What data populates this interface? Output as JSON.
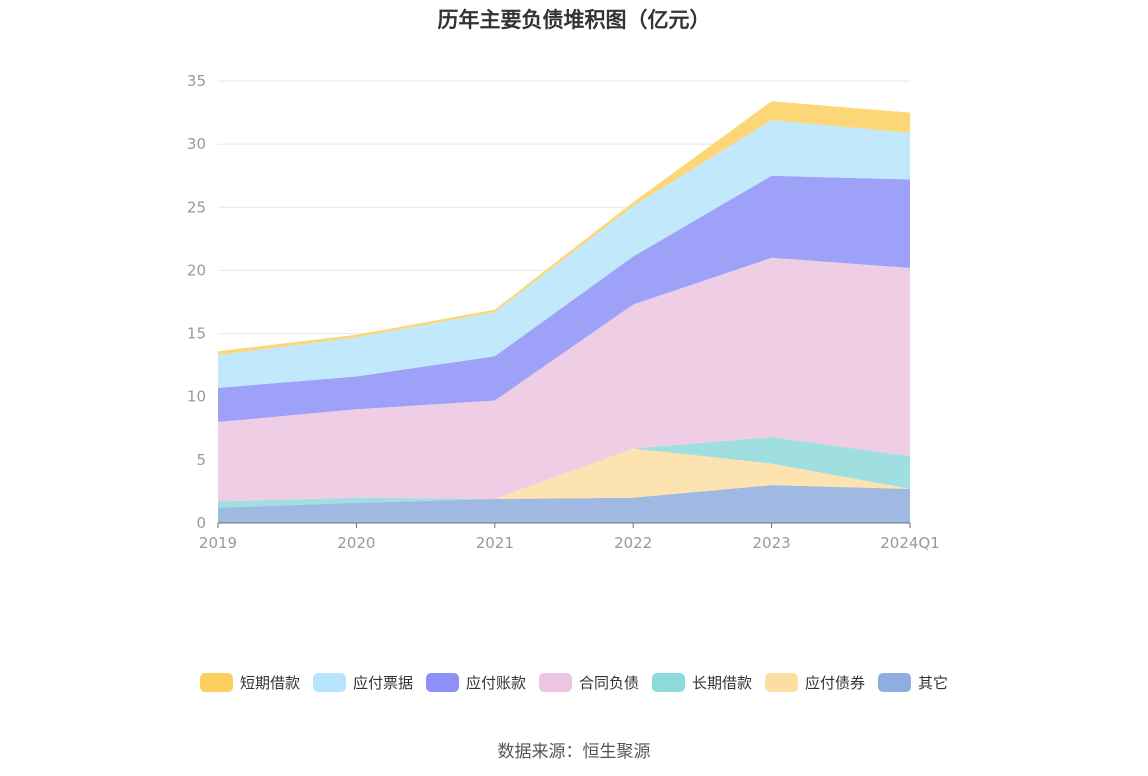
{
  "chart_data": {
    "type": "area",
    "stacked": true,
    "title": "历年主要负债堆积图（亿元）",
    "categories": [
      "2019",
      "2020",
      "2021",
      "2022",
      "2023",
      "2024Q1"
    ],
    "ylim": [
      0,
      35
    ],
    "yticks": [
      0,
      5,
      10,
      15,
      20,
      25,
      30,
      35
    ],
    "grid": true,
    "legend_position": "bottom",
    "series": [
      {
        "name": "其它",
        "color": "#8fadde",
        "values": [
          1.2,
          1.6,
          1.9,
          2.0,
          3.0,
          2.7
        ]
      },
      {
        "name": "应付债券",
        "color": "#fddea2",
        "values": [
          0.0,
          0.0,
          0.0,
          3.9,
          1.7,
          0.0
        ]
      },
      {
        "name": "长期借款",
        "color": "#8ed9d9",
        "values": [
          0.5,
          0.4,
          0.0,
          0.0,
          2.1,
          2.6
        ]
      },
      {
        "name": "合同负债",
        "color": "#ecc6e0",
        "values": [
          6.3,
          7.0,
          7.8,
          11.4,
          14.2,
          14.9
        ]
      },
      {
        "name": "应付账款",
        "color": "#8c90f7",
        "values": [
          2.7,
          2.6,
          3.5,
          3.8,
          6.5,
          7.0
        ]
      },
      {
        "name": "应付票据",
        "color": "#b7e4fa",
        "values": [
          2.6,
          3.1,
          3.5,
          4.0,
          4.4,
          3.7
        ]
      },
      {
        "name": "短期借款",
        "color": "#fdcf5f",
        "values": [
          0.3,
          0.2,
          0.2,
          0.3,
          1.5,
          1.6
        ]
      }
    ],
    "legend_order": [
      "短期借款",
      "应付票据",
      "应付账款",
      "合同负债",
      "长期借款",
      "应付债券",
      "其它"
    ]
  },
  "source": "数据来源：恒生聚源"
}
